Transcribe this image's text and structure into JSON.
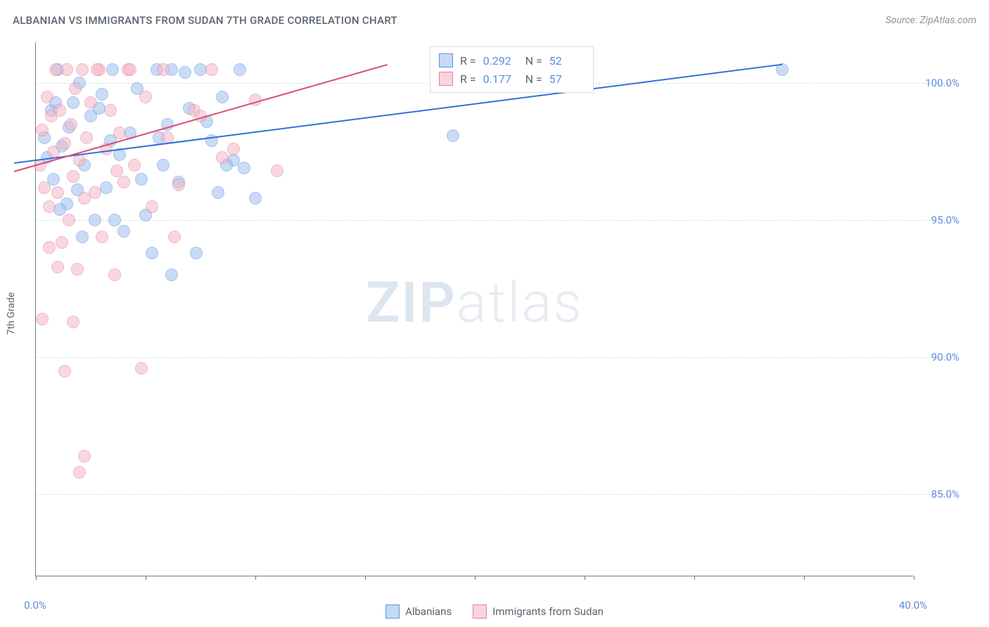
{
  "title": "ALBANIAN VS IMMIGRANTS FROM SUDAN 7TH GRADE CORRELATION CHART",
  "source": "Source: ZipAtlas.com",
  "watermark": {
    "bold": "ZIP",
    "light": "atlas"
  },
  "y_axis_label": "7th Grade",
  "chart": {
    "type": "scatter",
    "background_color": "#ffffff",
    "grid_color": "#d8dde3",
    "axis_color": "#707a85",
    "tick_label_color": "#5a8de0",
    "xlim": [
      0,
      40
    ],
    "ylim": [
      82,
      101.5
    ],
    "y_ticks": [
      85.0,
      90.0,
      95.0,
      100.0
    ],
    "y_tick_labels": [
      "85.0%",
      "90.0%",
      "95.0%",
      "100.0%"
    ],
    "x_ticks": [
      0,
      5,
      10,
      15,
      20,
      25,
      30,
      35,
      40
    ],
    "x_visible_labels": [
      {
        "x": 0,
        "label": "0.0%"
      },
      {
        "x": 40,
        "label": "40.0%"
      }
    ],
    "point_radius": 9,
    "point_opacity": 0.55,
    "label_fontsize": 15
  },
  "series": [
    {
      "name": "Albanians",
      "fill": "#9fbfef",
      "stroke": "#5d94df",
      "trend": {
        "x1": -1,
        "y1": 97.1,
        "x2": 34,
        "y2": 100.7,
        "color": "#2f73d4",
        "width": 2
      },
      "stats": {
        "R": "0.292",
        "N": "52"
      },
      "points": [
        [
          0.4,
          98.0
        ],
        [
          0.5,
          97.3
        ],
        [
          0.7,
          99.0
        ],
        [
          0.8,
          96.5
        ],
        [
          1.0,
          100.5
        ],
        [
          1.2,
          97.7
        ],
        [
          1.4,
          95.6
        ],
        [
          1.5,
          98.4
        ],
        [
          1.7,
          99.3
        ],
        [
          1.9,
          96.1
        ],
        [
          2.0,
          100.0
        ],
        [
          2.2,
          97.0
        ],
        [
          2.5,
          98.8
        ],
        [
          2.7,
          95.0
        ],
        [
          3.0,
          99.6
        ],
        [
          3.2,
          96.2
        ],
        [
          3.5,
          100.5
        ],
        [
          3.8,
          97.4
        ],
        [
          4.0,
          94.6
        ],
        [
          4.3,
          98.2
        ],
        [
          4.6,
          99.8
        ],
        [
          5.0,
          95.2
        ],
        [
          5.3,
          93.8
        ],
        [
          5.5,
          100.5
        ],
        [
          5.8,
          97.0
        ],
        [
          6.0,
          98.5
        ],
        [
          6.2,
          100.5
        ],
        [
          6.5,
          96.4
        ],
        [
          7.0,
          99.1
        ],
        [
          7.3,
          93.8
        ],
        [
          7.5,
          100.5
        ],
        [
          8.0,
          97.9
        ],
        [
          8.3,
          96.0
        ],
        [
          8.5,
          99.5
        ],
        [
          9.0,
          97.2
        ],
        [
          9.3,
          100.5
        ],
        [
          10.0,
          95.8
        ],
        [
          9.5,
          96.9
        ],
        [
          6.8,
          100.4
        ],
        [
          7.8,
          98.6
        ],
        [
          4.8,
          96.5
        ],
        [
          3.4,
          97.9
        ],
        [
          2.9,
          99.1
        ],
        [
          1.1,
          95.4
        ],
        [
          0.9,
          99.3
        ],
        [
          5.6,
          98.0
        ],
        [
          8.7,
          97.0
        ],
        [
          19.0,
          98.1
        ],
        [
          34.0,
          100.5
        ],
        [
          6.2,
          93.0
        ],
        [
          3.6,
          95.0
        ],
        [
          2.1,
          94.4
        ]
      ]
    },
    {
      "name": "Immigrants from Sudan",
      "fill": "#f3b7c8",
      "stroke": "#e77ea0",
      "trend": {
        "x1": -1,
        "y1": 96.8,
        "x2": 16,
        "y2": 100.7,
        "color": "#d94d7a",
        "width": 2
      },
      "stats": {
        "R": "0.177",
        "N": "57"
      },
      "points": [
        [
          0.2,
          97.0
        ],
        [
          0.3,
          98.3
        ],
        [
          0.4,
          96.2
        ],
        [
          0.5,
          99.5
        ],
        [
          0.6,
          95.5
        ],
        [
          0.7,
          98.8
        ],
        [
          0.8,
          97.5
        ],
        [
          0.9,
          100.5
        ],
        [
          1.0,
          96.0
        ],
        [
          1.1,
          99.0
        ],
        [
          1.2,
          94.2
        ],
        [
          1.3,
          97.8
        ],
        [
          1.4,
          100.5
        ],
        [
          1.5,
          95.0
        ],
        [
          1.6,
          98.5
        ],
        [
          1.7,
          96.6
        ],
        [
          1.8,
          99.8
        ],
        [
          1.9,
          93.2
        ],
        [
          2.0,
          97.2
        ],
        [
          2.1,
          100.5
        ],
        [
          2.2,
          95.8
        ],
        [
          2.3,
          98.0
        ],
        [
          2.5,
          99.3
        ],
        [
          2.7,
          96.0
        ],
        [
          2.9,
          100.5
        ],
        [
          3.0,
          94.4
        ],
        [
          3.2,
          97.6
        ],
        [
          3.4,
          99.0
        ],
        [
          3.6,
          93.0
        ],
        [
          3.8,
          98.2
        ],
        [
          4.0,
          96.4
        ],
        [
          4.2,
          100.5
        ],
        [
          4.5,
          97.0
        ],
        [
          4.8,
          89.6
        ],
        [
          5.0,
          99.5
        ],
        [
          5.3,
          95.5
        ],
        [
          5.8,
          100.5
        ],
        [
          6.0,
          98.0
        ],
        [
          6.5,
          96.3
        ],
        [
          7.2,
          99.0
        ],
        [
          8.0,
          100.5
        ],
        [
          9.0,
          97.6
        ],
        [
          10.0,
          99.4
        ],
        [
          11.0,
          96.8
        ],
        [
          0.3,
          91.4
        ],
        [
          1.3,
          89.5
        ],
        [
          2.0,
          85.8
        ],
        [
          2.2,
          86.4
        ],
        [
          2.8,
          100.5
        ],
        [
          3.7,
          96.8
        ],
        [
          4.3,
          100.5
        ],
        [
          1.0,
          93.3
        ],
        [
          0.6,
          94.0
        ],
        [
          1.7,
          91.3
        ],
        [
          6.3,
          94.4
        ],
        [
          7.5,
          98.8
        ],
        [
          8.5,
          97.3
        ]
      ]
    }
  ],
  "stats_box": {
    "rows": [
      {
        "swatch_fill": "#c6d9f5",
        "swatch_stroke": "#5d94df",
        "r_label": "R =",
        "n_label": "N ="
      },
      {
        "swatch_fill": "#f9d4df",
        "swatch_stroke": "#e77ea0",
        "r_label": "R =",
        "n_label": "N ="
      }
    ]
  },
  "legend": [
    {
      "label": "Albanians",
      "fill": "#c6d9f5",
      "stroke": "#5d94df"
    },
    {
      "label": "Immigrants from Sudan",
      "fill": "#f9d4df",
      "stroke": "#e77ea0"
    }
  ]
}
